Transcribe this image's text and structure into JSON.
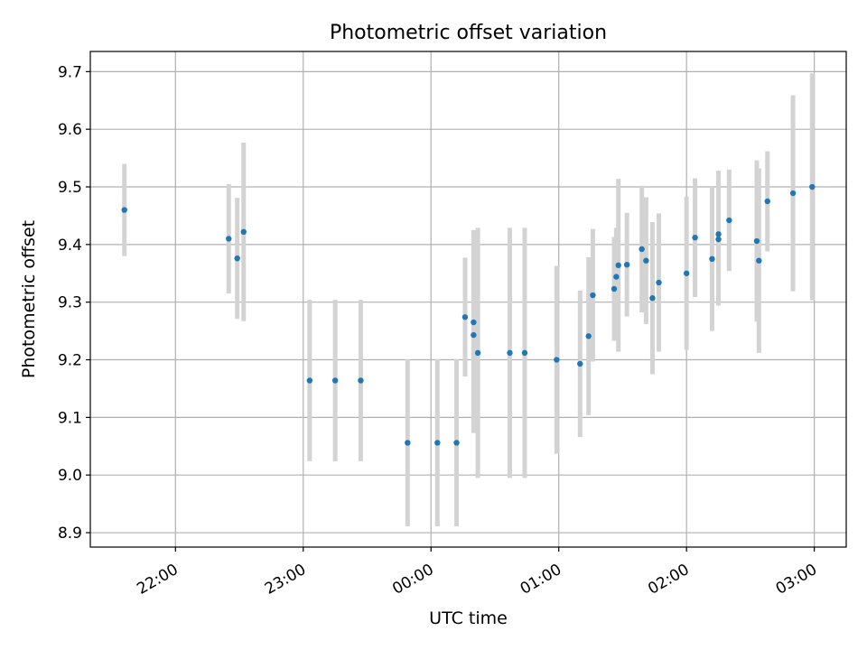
{
  "chart_data": {
    "type": "scatter",
    "title": "Photometric offset variation",
    "xlabel": "UTC time",
    "ylabel": "Photometric offset",
    "ylim": [
      8.875,
      9.735
    ],
    "xlim": [
      "21:20",
      "03:15"
    ],
    "grid": true,
    "x_ticks": [
      "22:00",
      "23:00",
      "00:00",
      "01:00",
      "02:00",
      "03:00"
    ],
    "y_ticks": [
      "8.9",
      "9.0",
      "9.1",
      "9.2",
      "9.3",
      "9.4",
      "9.5",
      "9.6",
      "9.7"
    ],
    "colors": {
      "point": "#1f77b4",
      "errorbar": "#d3d3d3",
      "grid": "#b0b0b0"
    },
    "series": [
      {
        "points": [
          {
            "t": "21:36",
            "y": 9.46,
            "err": 0.08
          },
          {
            "t": "22:25",
            "y": 9.41,
            "err": 0.095
          },
          {
            "t": "22:29",
            "y": 9.376,
            "err": 0.105
          },
          {
            "t": "22:32",
            "y": 9.422,
            "err": 0.155
          },
          {
            "t": "23:03",
            "y": 9.164,
            "err": 0.14
          },
          {
            "t": "23:15",
            "y": 9.164,
            "err": 0.14
          },
          {
            "t": "23:27",
            "y": 9.164,
            "err": 0.14
          },
          {
            "t": "23:49",
            "y": 9.056,
            "err": 0.145
          },
          {
            "t": "00:03",
            "y": 9.056,
            "err": 0.145
          },
          {
            "t": "00:12",
            "y": 9.056,
            "err": 0.145
          },
          {
            "t": "00:16",
            "y": 9.274,
            "err": 0.103
          },
          {
            "t": "00:20",
            "y": 9.265,
            "err": 0.16
          },
          {
            "t": "00:20",
            "y": 9.243,
            "err": 0.17
          },
          {
            "t": "00:22",
            "y": 9.212,
            "err": 0.217
          },
          {
            "t": "00:37",
            "y": 9.212,
            "err": 0.217
          },
          {
            "t": "00:44",
            "y": 9.212,
            "err": 0.217
          },
          {
            "t": "00:59",
            "y": 9.2,
            "err": 0.163
          },
          {
            "t": "01:10",
            "y": 9.193,
            "err": 0.127
          },
          {
            "t": "01:14",
            "y": 9.241,
            "err": 0.137
          },
          {
            "t": "01:16",
            "y": 9.312,
            "err": 0.115
          },
          {
            "t": "01:26",
            "y": 9.323,
            "err": 0.09
          },
          {
            "t": "01:27",
            "y": 9.344,
            "err": 0.085
          },
          {
            "t": "01:28",
            "y": 9.364,
            "err": 0.15
          },
          {
            "t": "01:32",
            "y": 9.365,
            "err": 0.09
          },
          {
            "t": "01:39",
            "y": 9.392,
            "err": 0.11
          },
          {
            "t": "01:41",
            "y": 9.372,
            "err": 0.11
          },
          {
            "t": "01:44",
            "y": 9.307,
            "err": 0.132
          },
          {
            "t": "01:47",
            "y": 9.334,
            "err": 0.12
          },
          {
            "t": "02:00",
            "y": 9.35,
            "err": 0.133
          },
          {
            "t": "02:04",
            "y": 9.412,
            "err": 0.103
          },
          {
            "t": "02:12",
            "y": 9.375,
            "err": 0.125
          },
          {
            "t": "02:15",
            "y": 9.409,
            "err": 0.115
          },
          {
            "t": "02:15",
            "y": 9.418,
            "err": 0.11
          },
          {
            "t": "02:20",
            "y": 9.442,
            "err": 0.088
          },
          {
            "t": "02:33",
            "y": 9.406,
            "err": 0.14
          },
          {
            "t": "02:34",
            "y": 9.372,
            "err": 0.16
          },
          {
            "t": "02:38",
            "y": 9.475,
            "err": 0.087
          },
          {
            "t": "02:50",
            "y": 9.489,
            "err": 0.17
          },
          {
            "t": "02:59",
            "y": 9.5,
            "err": 0.197
          }
        ]
      }
    ]
  }
}
